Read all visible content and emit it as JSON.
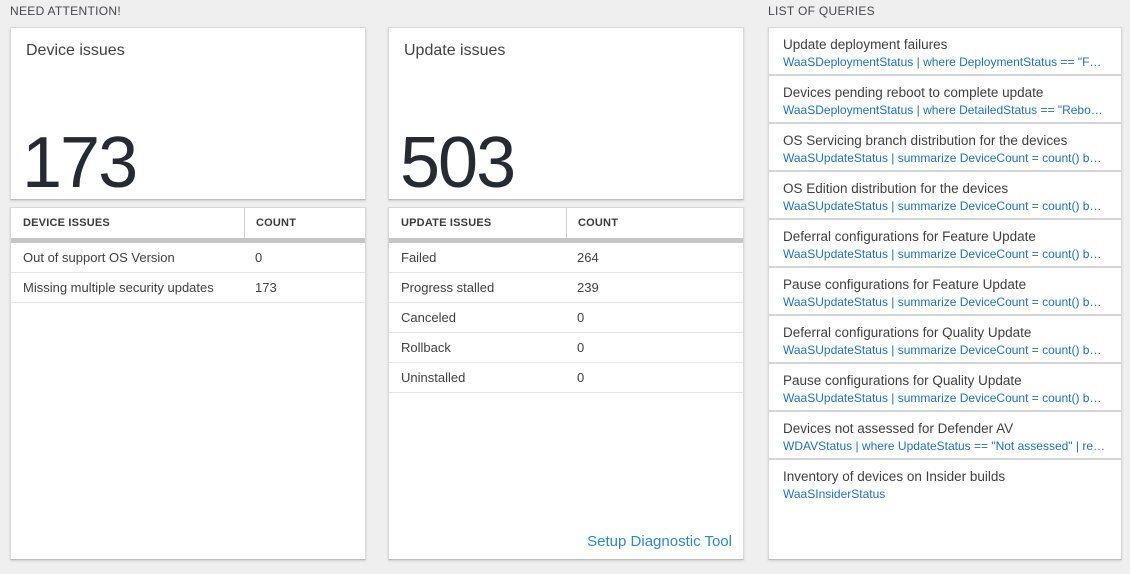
{
  "colors": {
    "page_bg": "#efeff0",
    "card_bg": "#ffffff",
    "card_border": "#d9d9d9",
    "section_header_text": "#47474c",
    "card_title_text": "#414141",
    "big_number_text": "#262b33",
    "table_header_text": "#3b3b3b",
    "row_text": "#404040",
    "query_link_blue": "#1e70c1",
    "setup_link_blue": "#2d87cb",
    "table_header_bar": "#c6c6c6"
  },
  "need_attention": {
    "header": "NEED ATTENTION!",
    "device_card": {
      "title": "Device issues",
      "count": "173",
      "columns": [
        "DEVICE ISSUES",
        "COUNT"
      ],
      "rows": [
        {
          "label": "Out of support OS Version",
          "count": "0"
        },
        {
          "label": "Missing multiple security updates",
          "count": "173"
        }
      ]
    },
    "update_card": {
      "title": "Update issues",
      "count": "503",
      "columns": [
        "UPDATE ISSUES",
        "COUNT"
      ],
      "rows": [
        {
          "label": "Failed",
          "count": "264"
        },
        {
          "label": "Progress stalled",
          "count": "239"
        },
        {
          "label": "Canceled",
          "count": "0"
        },
        {
          "label": "Rollback",
          "count": "0"
        },
        {
          "label": "Uninstalled",
          "count": "0"
        }
      ],
      "footer_link": "Setup Diagnostic Tool"
    }
  },
  "queries": {
    "header": "LIST OF QUERIES",
    "items": [
      {
        "title": "Update deployment failures",
        "query": "WaaSDeploymentStatus | where DeploymentStatus == \"Failed\" |..."
      },
      {
        "title": "Devices pending reboot to complete update",
        "query": "WaaSDeploymentStatus | where DetailedStatus == \"Reboot pend..."
      },
      {
        "title": "OS Servicing branch distribution for the devices",
        "query": "WaaSUpdateStatus | summarize DeviceCount = count() by OSSer..."
      },
      {
        "title": "OS Edition distribution for the devices",
        "query": "WaaSUpdateStatus | summarize DeviceCount = count() by OSEdit..."
      },
      {
        "title": "Deferral configurations for Feature Update",
        "query": "WaaSUpdateStatus | summarize DeviceCount = count() by Featur..."
      },
      {
        "title": "Pause configurations for Feature Update",
        "query": "WaaSUpdateStatus | summarize DeviceCount = count() by Featur..."
      },
      {
        "title": "Deferral configurations for Quality Update",
        "query": "WaaSUpdateStatus | summarize DeviceCount = count() by Qualit..."
      },
      {
        "title": "Pause configurations for Quality Update",
        "query": "WaaSUpdateStatus | summarize DeviceCount = count() by Qualit..."
      },
      {
        "title": "Devices not assessed for Defender AV",
        "query": "WDAVStatus | where UpdateStatus == \"Not assessed\" | render ta..."
      },
      {
        "title": "Inventory of devices on Insider builds",
        "query": "WaaSInsiderStatus"
      }
    ]
  }
}
